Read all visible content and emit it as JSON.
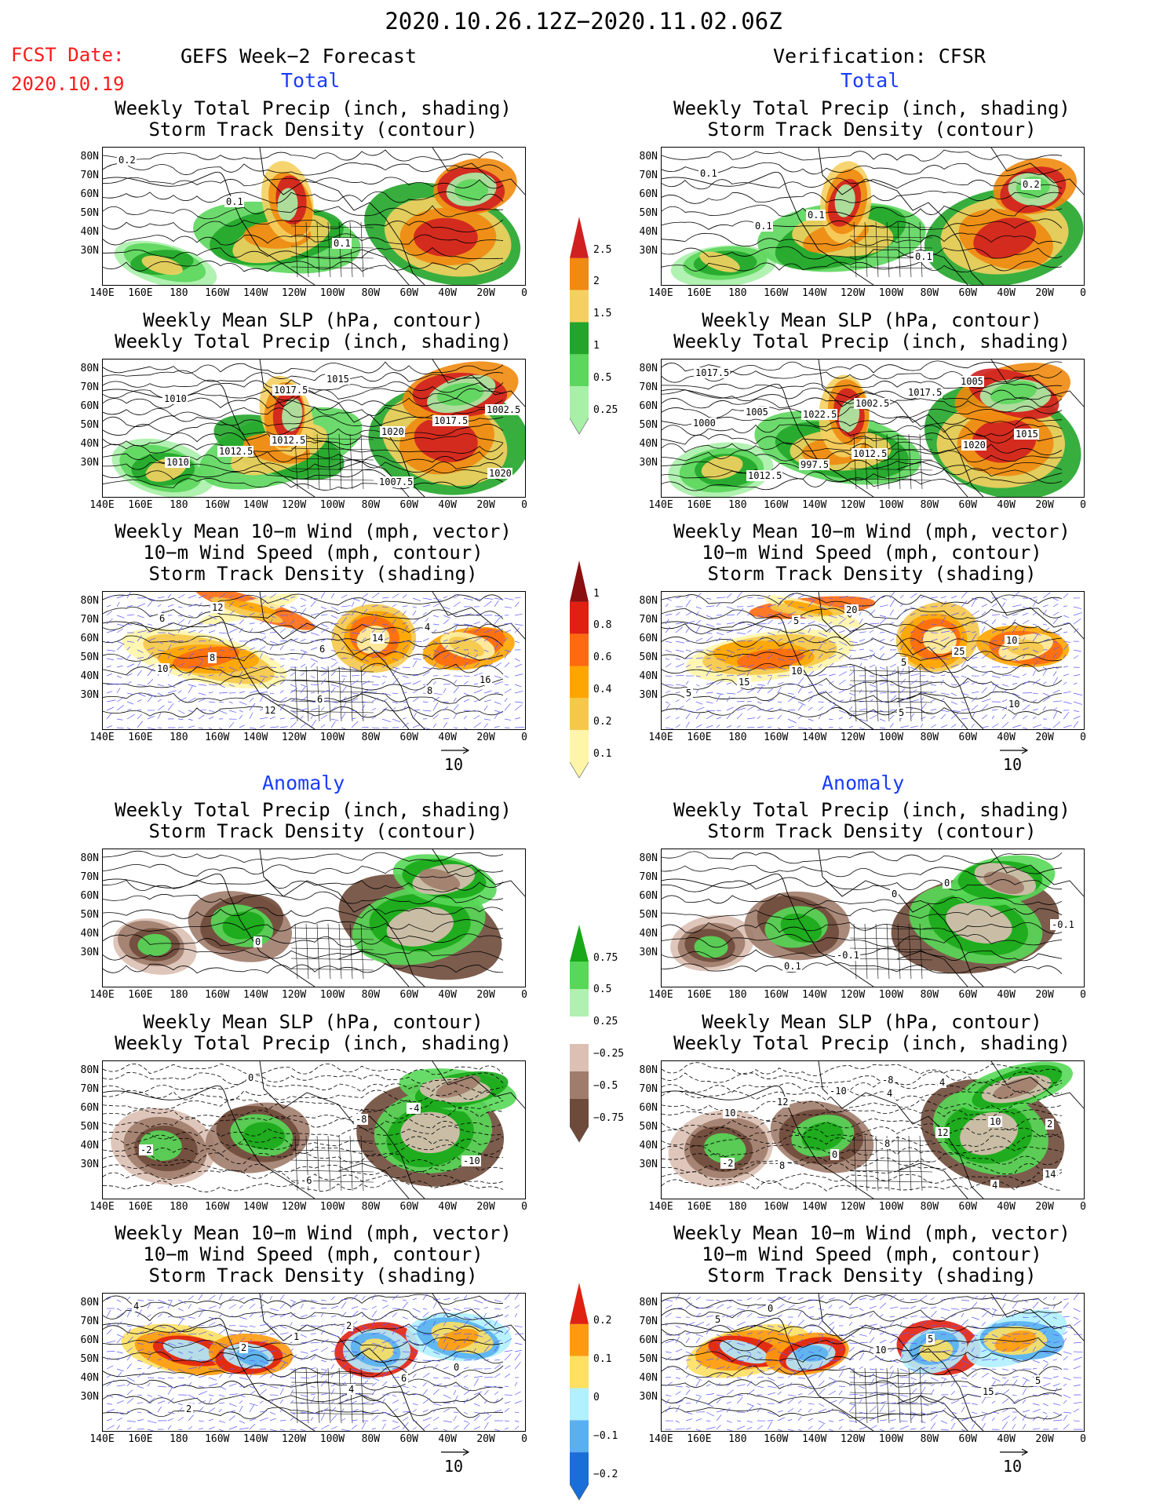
{
  "header": {
    "title": "2020.10.26.12Z−2020.11.02.06Z",
    "fcst_label": "FCST Date:",
    "fcst_date": "2020.10.19",
    "left_heading": "GEFS Week−2 Forecast",
    "right_heading": "Verification: CFSR",
    "section_total": "Total",
    "section_anomaly": "Anomaly"
  },
  "axes": {
    "lat_labels": [
      "80N",
      "70N",
      "60N",
      "50N",
      "40N",
      "30N"
    ],
    "lon_labels": [
      "140E",
      "160E",
      "180",
      "160W",
      "140W",
      "120W",
      "100W",
      "80W",
      "60W",
      "40W",
      "20W",
      "0"
    ]
  },
  "panels": [
    {
      "id": "f-total-precip",
      "title1": "Weekly Total Precip (inch, shading)",
      "title2": "Storm Track Density (contour)",
      "title3": "",
      "kind": "precip",
      "labels": [
        "0.2",
        "0.1",
        "0.1"
      ]
    },
    {
      "id": "v-total-precip",
      "title1": "Weekly Total Precip (inch, shading)",
      "title2": "Storm Track Density (contour)",
      "title3": "",
      "kind": "precip",
      "labels": [
        "0.1",
        "0.1",
        "0.1",
        "0.2",
        "0.1"
      ]
    },
    {
      "id": "f-total-slp",
      "title1": "Weekly Mean SLP (hPa, contour)",
      "title2": "Weekly Total Precip (inch, shading)",
      "title3": "",
      "kind": "slp",
      "labels": [
        "1010",
        "1012.5",
        "1007.5",
        "1002.5",
        "1012.5",
        "1015",
        "1017.5",
        "1010",
        "1017.5",
        "1020",
        "1020"
      ]
    },
    {
      "id": "v-total-slp",
      "title1": "Weekly Mean SLP (hPa, contour)",
      "title2": "Weekly Total Precip (inch, shading)",
      "title3": "",
      "kind": "slp",
      "labels": [
        "1005",
        "1012.5",
        "1005",
        "1000",
        "997.5",
        "1017.5",
        "1015",
        "1012.5",
        "1002.5",
        "1020",
        "1017.5",
        "1022.5"
      ]
    },
    {
      "id": "f-total-wind",
      "title1": "Weekly Mean 10−m Wind (mph, vector)",
      "title2": "10−m Wind Speed (mph, contour)",
      "title3": "Storm Track Density (shading)",
      "kind": "wind",
      "labels": [
        "8",
        "6",
        "4",
        "10",
        "12",
        "14",
        "16",
        "12",
        "6",
        "8",
        "6"
      ]
    },
    {
      "id": "v-total-wind",
      "title1": "Weekly Mean 10−m Wind (mph, vector)",
      "title2": "10−m Wind Speed (mph, contour)",
      "title3": "Storm Track Density (shading)",
      "kind": "wind",
      "labels": [
        "10",
        "5",
        "10",
        "15",
        "20",
        "25",
        "5",
        "5",
        "5",
        "10"
      ]
    },
    {
      "id": "f-anom-precip",
      "title1": "Weekly Total Precip (inch, shading)",
      "title2": "Storm Track Density (contour)",
      "title3": "",
      "kind": "aprecip",
      "labels": [
        "0"
      ]
    },
    {
      "id": "v-anom-precip",
      "title1": "Weekly Total Precip (inch, shading)",
      "title2": "Storm Track Density (contour)",
      "title3": "",
      "kind": "aprecip",
      "labels": [
        "-0.1",
        "0",
        "-0.1",
        "0.1",
        "0"
      ]
    },
    {
      "id": "f-anom-slp",
      "title1": "Weekly Mean SLP (hPa, contour)",
      "title2": "Weekly Total Precip (inch, shading)",
      "title3": "",
      "kind": "aslp",
      "labels": [
        "-6",
        "-4",
        "-2",
        "0",
        "-8",
        "-10"
      ]
    },
    {
      "id": "v-anom-slp",
      "title1": "Weekly Mean SLP (hPa, contour)",
      "title2": "Weekly Total Precip (inch, shading)",
      "title3": "",
      "kind": "aslp",
      "labels": [
        "-8",
        "10",
        "-2",
        "-10",
        "12",
        "14",
        "12",
        "8",
        "4",
        "10",
        "0",
        "4",
        "2",
        "8",
        "4"
      ]
    },
    {
      "id": "f-anom-wind",
      "title1": "Weekly Mean 10−m Wind (mph, vector)",
      "title2": "10−m Wind Speed (mph, contour)",
      "title3": "Storm Track Density (shading)",
      "kind": "awind",
      "labels": [
        "2",
        "0",
        "2",
        "1",
        "6",
        "4",
        "2",
        "4"
      ]
    },
    {
      "id": "v-anom-wind",
      "title1": "Weekly Mean 10−m Wind (mph, vector)",
      "title2": "10−m Wind Speed (mph, contour)",
      "title3": "Storm Track Density (shading)",
      "kind": "awind",
      "labels": [
        "5",
        "5",
        "0",
        "10",
        "15",
        "5"
      ]
    }
  ],
  "colorbars": [
    {
      "id": "cb-precip",
      "labels": [
        "2.5",
        "2",
        "1.5",
        "1",
        "0.5",
        "0.25"
      ],
      "colors": [
        "#d02020",
        "#f08a10",
        "#f5d060",
        "#22a52a",
        "#5cd65c",
        "#a8f0a8"
      ]
    },
    {
      "id": "cb-track",
      "labels": [
        "1",
        "0.8",
        "0.6",
        "0.4",
        "0.2",
        "0.1"
      ],
      "colors": [
        "#8a0f0f",
        "#e02010",
        "#ff6a10",
        "#ffa500",
        "#f5c84a",
        "#fff5a8"
      ]
    },
    {
      "id": "cb-aprecip",
      "labels": [
        "0.75",
        "0.5",
        "0.25",
        "−0.25",
        "−0.5",
        "−0.75"
      ],
      "colors": [
        "#18a818",
        "#58d858",
        "#b0f0b0",
        "#ffffff",
        "#dcc0b4",
        "#a07c6c",
        "#6e4a3a"
      ]
    },
    {
      "id": "cb-atrack",
      "labels": [
        "0.2",
        "0.1",
        "0",
        "−0.1",
        "−0.2"
      ],
      "colors": [
        "#e02010",
        "#ff9a10",
        "#ffe060",
        "#b0f0ff",
        "#58b0f0",
        "#1a6ed8"
      ]
    }
  ],
  "vector_ref": "10",
  "colors": {
    "red": "#ff1a1a",
    "blue": "#1a3cff"
  }
}
